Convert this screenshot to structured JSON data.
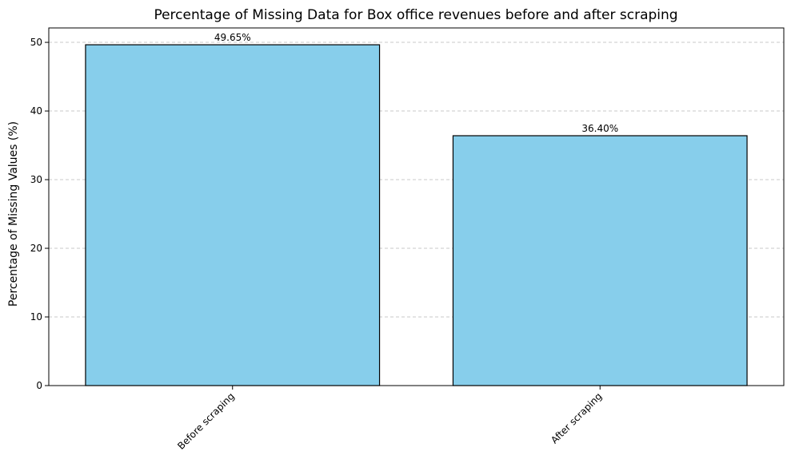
{
  "chart_data": {
    "type": "bar",
    "title": "Percentage of Missing Data for Box office revenues before and after scraping",
    "xlabel": "",
    "ylabel": "Percentage of Missing Values (%)",
    "categories": [
      "Before scraping",
      "After scraping"
    ],
    "values": [
      49.65,
      36.4
    ],
    "data_labels": [
      "49.65%",
      "36.40%"
    ],
    "ylim": [
      0,
      52.1
    ],
    "yticks": [
      0,
      10,
      20,
      30,
      40,
      50
    ],
    "ytick_labels": [
      "0",
      "10",
      "20",
      "30",
      "40",
      "50"
    ],
    "grid": "y-dashed",
    "legend": "none",
    "colors": {
      "bar_fill": "#87ceeb",
      "bar_edge": "#000000",
      "grid": "#c8c8c8"
    }
  }
}
